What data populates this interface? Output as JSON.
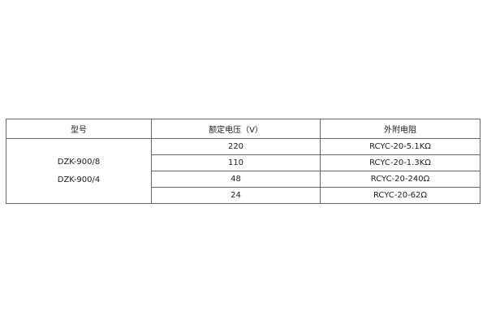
{
  "table": {
    "headers": [
      "型号",
      "额定电压（V）",
      "外附电阻"
    ],
    "models": [
      "DZK-900/8",
      "DZK-900/4"
    ],
    "rows": [
      {
        "voltage": "220",
        "resistor": "RCYC-20-5.1KΩ"
      },
      {
        "voltage": "110",
        "resistor": "RCYC-20-1.3KΩ"
      },
      {
        "voltage": "48",
        "resistor": "RCYC-20-240Ω"
      },
      {
        "voltage": "24",
        "resistor": "RCYC-20-62Ω"
      }
    ]
  }
}
